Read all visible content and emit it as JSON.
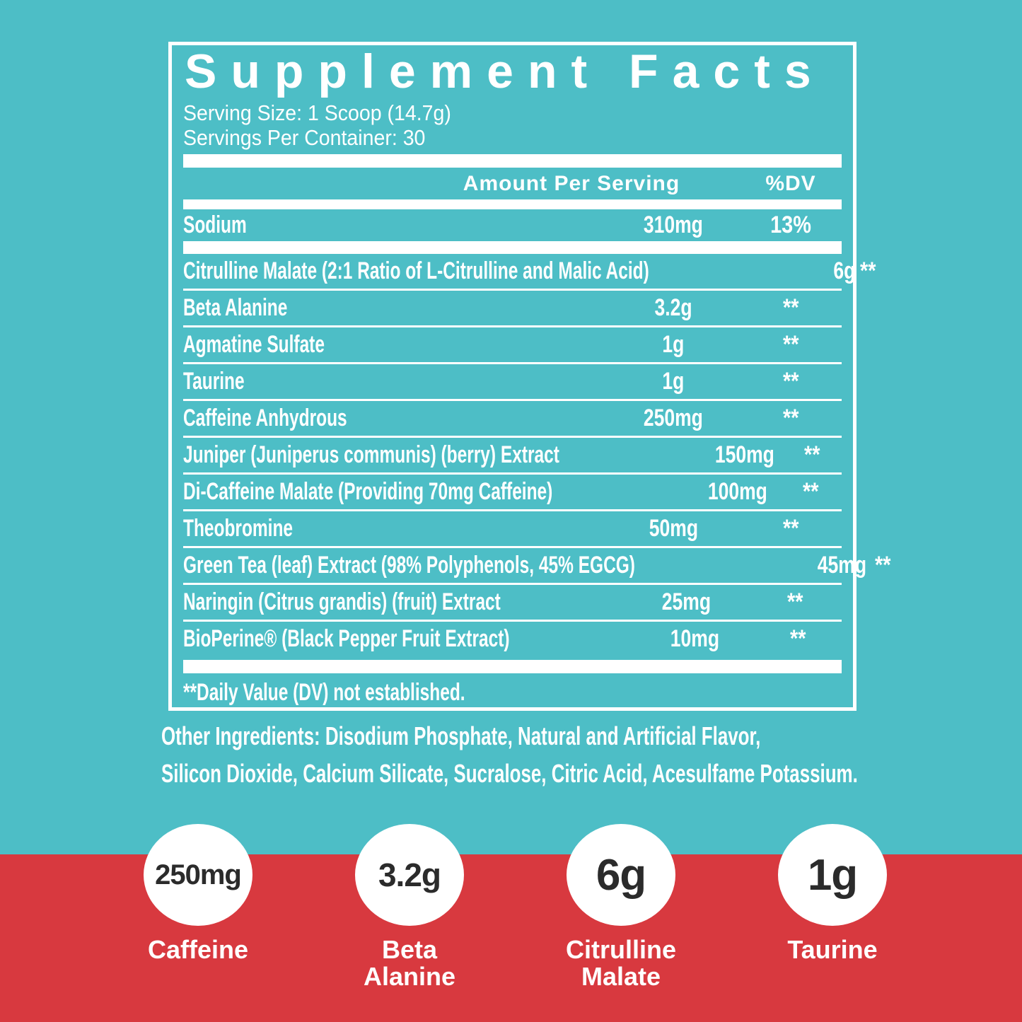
{
  "colors": {
    "teal_background": "#4DBEC6",
    "red_band": "#D8393F",
    "panel_lines": "#FFFFFF",
    "light_text": "#FFFFFF",
    "dark_text": "#2B2B2B"
  },
  "panel": {
    "title": "Supplement Facts",
    "serving_size": "Serving Size: 1 Scoop (14.7g)",
    "servings_per_container": "Servings Per Container: 30",
    "columns": {
      "amount": "Amount Per Serving",
      "dv": "%DV"
    },
    "sodium": {
      "name": "Sodium",
      "amount": "310mg",
      "dv": "13%"
    },
    "rows": [
      {
        "name": "Citrulline Malate (2:1 Ratio of L-Citrulline and Malic Acid)",
        "amount": "6g",
        "dv": "**"
      },
      {
        "name": "Beta Alanine",
        "amount": "3.2g",
        "dv": "**"
      },
      {
        "name": "Agmatine Sulfate",
        "amount": "1g",
        "dv": "**"
      },
      {
        "name": "Taurine",
        "amount": "1g",
        "dv": "**"
      },
      {
        "name": "Caffeine Anhydrous",
        "amount": "250mg",
        "dv": "**"
      },
      {
        "name": "Juniper (Juniperus communis) (berry) Extract",
        "amount": "150mg",
        "dv": "**"
      },
      {
        "name": "Di-Caffeine Malate (Providing 70mg Caffeine)",
        "amount": "100mg",
        "dv": "**"
      },
      {
        "name": "Theobromine",
        "amount": "50mg",
        "dv": "**"
      },
      {
        "name": "Green Tea (leaf) Extract (98% Polyphenols, 45% EGCG)",
        "amount": "45mg",
        "dv": "**"
      },
      {
        "name": "Naringin (Citrus grandis) (fruit) Extract",
        "amount": "25mg",
        "dv": "**"
      },
      {
        "name": "BioPerine® (Black Pepper Fruit Extract)",
        "amount": "10mg",
        "dv": "**"
      }
    ],
    "footnote": "**Daily Value (DV) not established."
  },
  "other_ingredients": {
    "line1": "Other Ingredients: Disodium Phosphate, Natural and Artificial Flavor,",
    "line2": "Silicon Dioxide, Calcium Silicate, Sucralose, Citric Acid, Acesulfame Potassium."
  },
  "highlights": [
    {
      "value": "250mg",
      "label": "Caffeine"
    },
    {
      "value": "3.2g",
      "label": "Beta Alanine"
    },
    {
      "value": "6g",
      "label": "Citrulline Malate"
    },
    {
      "value": "1g",
      "label": "Taurine"
    }
  ]
}
